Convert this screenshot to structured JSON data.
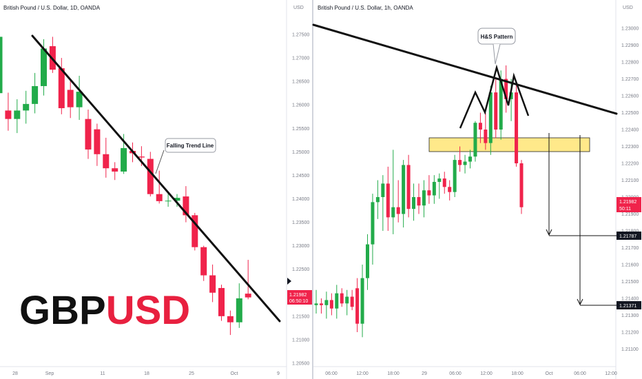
{
  "colors": {
    "up": "#22ab4a",
    "down": "#f0234b",
    "axis_text": "#787b86",
    "zone_fill": "#ffe98a",
    "zone_border": "#222222",
    "badge_black": "#131722",
    "ticker_base": "#111111",
    "ticker_quote": "#e8203f"
  },
  "left": {
    "title": "British Pound / U.S. Dollar, 1D, OANDA",
    "currency": "USD",
    "y_ticks": [
      "1.27500",
      "1.27000",
      "1.26500",
      "1.26000",
      "1.25500",
      "1.25000",
      "1.24500",
      "1.24000",
      "1.23500",
      "1.23000",
      "1.22500",
      "1.22000",
      "1.21500",
      "1.21000",
      "1.20500"
    ],
    "x_ticks": [
      "28",
      "Sep",
      "11",
      "18",
      "25",
      "Oct",
      "9"
    ],
    "price_badge": "1.21982",
    "countdown": "06:50:10",
    "annotation": "Falling Trend Line",
    "ticker_base": "GBP",
    "ticker_quote": "USD"
  },
  "right": {
    "title": "British Pound / U.S. Dollar, 1h, OANDA",
    "currency": "USD",
    "y_ticks": [
      "1.23000",
      "1.22900",
      "1.22800",
      "1.22700",
      "1.22600",
      "1.22500",
      "1.22400",
      "1.22300",
      "1.22200",
      "1.22100",
      "1.22000",
      "1.21900",
      "1.21800",
      "1.21700",
      "1.21600",
      "1.21500",
      "1.21400",
      "1.21300",
      "1.21200",
      "1.21100"
    ],
    "x_ticks": [
      "06:00",
      "12:00",
      "18:00",
      "29",
      "06:00",
      "12:00",
      "18:00",
      "Oct",
      "06:00",
      "12:00"
    ],
    "price_badge": "1.21982",
    "countdown": "50:11",
    "target1": "1.21787",
    "target2": "1.21371",
    "annotation": "H&S Pattern"
  },
  "chart_data": [
    {
      "type": "candlestick",
      "title": "British Pound / U.S. Dollar, 1D, OANDA",
      "y_axis_unit": "USD",
      "ylim": [
        1.203,
        1.2795
      ],
      "series": [
        {
          "o": 1.2625,
          "h": 1.276,
          "l": 1.2555,
          "c": 1.2745
        },
        {
          "o": 1.2588,
          "h": 1.2626,
          "l": 1.2545,
          "c": 1.257
        },
        {
          "o": 1.257,
          "h": 1.2612,
          "l": 1.254,
          "c": 1.2588
        },
        {
          "o": 1.2588,
          "h": 1.263,
          "l": 1.256,
          "c": 1.2602
        },
        {
          "o": 1.2602,
          "h": 1.2668,
          "l": 1.2582,
          "c": 1.264
        },
        {
          "o": 1.264,
          "h": 1.274,
          "l": 1.262,
          "c": 1.272
        },
        {
          "o": 1.2725,
          "h": 1.2745,
          "l": 1.2668,
          "c": 1.2675
        },
        {
          "o": 1.2678,
          "h": 1.27,
          "l": 1.258,
          "c": 1.2593
        },
        {
          "o": 1.2632,
          "h": 1.2652,
          "l": 1.2572,
          "c": 1.2595
        },
        {
          "o": 1.2595,
          "h": 1.2662,
          "l": 1.2568,
          "c": 1.2628
        },
        {
          "o": 1.257,
          "h": 1.259,
          "l": 1.2485,
          "c": 1.2505
        },
        {
          "o": 1.2548,
          "h": 1.256,
          "l": 1.247,
          "c": 1.2495
        },
        {
          "o": 1.2495,
          "h": 1.253,
          "l": 1.2445,
          "c": 1.2465
        },
        {
          "o": 1.2465,
          "h": 1.2478,
          "l": 1.244,
          "c": 1.2458
        },
        {
          "o": 1.2458,
          "h": 1.2538,
          "l": 1.2453,
          "c": 1.2508
        },
        {
          "o": 1.2502,
          "h": 1.252,
          "l": 1.2478,
          "c": 1.2497
        },
        {
          "o": 1.249,
          "h": 1.2512,
          "l": 1.247,
          "c": 1.2488
        },
        {
          "o": 1.2485,
          "h": 1.25,
          "l": 1.2405,
          "c": 1.241
        },
        {
          "o": 1.241,
          "h": 1.246,
          "l": 1.239,
          "c": 1.2395
        },
        {
          "o": 1.2395,
          "h": 1.2413,
          "l": 1.2383,
          "c": 1.2396
        },
        {
          "o": 1.2396,
          "h": 1.241,
          "l": 1.2383,
          "c": 1.2402
        },
        {
          "o": 1.2405,
          "h": 1.2427,
          "l": 1.235,
          "c": 1.2365
        },
        {
          "o": 1.2365,
          "h": 1.237,
          "l": 1.229,
          "c": 1.2297
        },
        {
          "o": 1.2297,
          "h": 1.23,
          "l": 1.2225,
          "c": 1.2237
        },
        {
          "o": 1.2237,
          "h": 1.226,
          "l": 1.218,
          "c": 1.22
        },
        {
          "o": 1.221,
          "h": 1.2217,
          "l": 1.214,
          "c": 1.215
        },
        {
          "o": 1.215,
          "h": 1.2162,
          "l": 1.211,
          "c": 1.2137
        },
        {
          "o": 1.2137,
          "h": 1.222,
          "l": 1.2125,
          "c": 1.2188
        },
        {
          "o": 1.2198,
          "h": 1.227,
          "l": 1.2186,
          "c": 1.219
        }
      ]
    },
    {
      "type": "candlestick",
      "title": "British Pound / U.S. Dollar, 1h, OANDA",
      "y_axis_unit": "USD",
      "ylim": [
        1.2105,
        1.2315
      ],
      "series": [
        {
          "o": 1.2136,
          "h": 1.2145,
          "l": 1.2131,
          "c": 1.2137
        },
        {
          "o": 1.2137,
          "h": 1.214,
          "l": 1.2131,
          "c": 1.2136
        },
        {
          "o": 1.2136,
          "h": 1.2144,
          "l": 1.2128,
          "c": 1.2139
        },
        {
          "o": 1.2139,
          "h": 1.2143,
          "l": 1.213,
          "c": 1.2134
        },
        {
          "o": 1.2134,
          "h": 1.2148,
          "l": 1.2128,
          "c": 1.2143
        },
        {
          "o": 1.2143,
          "h": 1.2146,
          "l": 1.2135,
          "c": 1.2137
        },
        {
          "o": 1.2137,
          "h": 1.2145,
          "l": 1.213,
          "c": 1.2141
        },
        {
          "o": 1.2141,
          "h": 1.2145,
          "l": 1.2133,
          "c": 1.2135
        },
        {
          "o": 1.2146,
          "h": 1.2152,
          "l": 1.212,
          "c": 1.2125
        },
        {
          "o": 1.2125,
          "h": 1.216,
          "l": 1.2117,
          "c": 1.2152
        },
        {
          "o": 1.2152,
          "h": 1.2178,
          "l": 1.2145,
          "c": 1.2172
        },
        {
          "o": 1.2172,
          "h": 1.2202,
          "l": 1.216,
          "c": 1.2197
        },
        {
          "o": 1.2197,
          "h": 1.221,
          "l": 1.2187,
          "c": 1.22
        },
        {
          "o": 1.22,
          "h": 1.2213,
          "l": 1.218,
          "c": 1.2208
        },
        {
          "o": 1.2208,
          "h": 1.2218,
          "l": 1.218,
          "c": 1.2188
        },
        {
          "o": 1.2188,
          "h": 1.2228,
          "l": 1.2178,
          "c": 1.2194
        },
        {
          "o": 1.2194,
          "h": 1.221,
          "l": 1.2185,
          "c": 1.219
        },
        {
          "o": 1.219,
          "h": 1.2222,
          "l": 1.2182,
          "c": 1.2219
        },
        {
          "o": 1.2219,
          "h": 1.2225,
          "l": 1.2188,
          "c": 1.2193
        },
        {
          "o": 1.2193,
          "h": 1.2208,
          "l": 1.2186,
          "c": 1.22
        },
        {
          "o": 1.22,
          "h": 1.2208,
          "l": 1.219,
          "c": 1.2195
        },
        {
          "o": 1.2195,
          "h": 1.221,
          "l": 1.2188,
          "c": 1.2204
        },
        {
          "o": 1.2204,
          "h": 1.2213,
          "l": 1.2196,
          "c": 1.2201
        },
        {
          "o": 1.2201,
          "h": 1.2213,
          "l": 1.2196,
          "c": 1.2209
        },
        {
          "o": 1.2209,
          "h": 1.2214,
          "l": 1.2199,
          "c": 1.2211
        },
        {
          "o": 1.2211,
          "h": 1.2215,
          "l": 1.2202,
          "c": 1.2206
        },
        {
          "o": 1.2206,
          "h": 1.221,
          "l": 1.2198,
          "c": 1.2203
        },
        {
          "o": 1.2203,
          "h": 1.2225,
          "l": 1.22,
          "c": 1.2222
        },
        {
          "o": 1.2222,
          "h": 1.223,
          "l": 1.2215,
          "c": 1.2219
        },
        {
          "o": 1.2219,
          "h": 1.2225,
          "l": 1.2214,
          "c": 1.2221
        },
        {
          "o": 1.2221,
          "h": 1.2228,
          "l": 1.2217,
          "c": 1.2224
        },
        {
          "o": 1.2224,
          "h": 1.2245,
          "l": 1.2221,
          "c": 1.2244
        },
        {
          "o": 1.2244,
          "h": 1.225,
          "l": 1.2232,
          "c": 1.224
        },
        {
          "o": 1.224,
          "h": 1.225,
          "l": 1.2228,
          "c": 1.2232
        },
        {
          "o": 1.2232,
          "h": 1.2266,
          "l": 1.2225,
          "c": 1.2262
        },
        {
          "o": 1.2262,
          "h": 1.227,
          "l": 1.2235,
          "c": 1.224
        },
        {
          "o": 1.224,
          "h": 1.2275,
          "l": 1.2234,
          "c": 1.227
        },
        {
          "o": 1.227,
          "h": 1.2278,
          "l": 1.225,
          "c": 1.2258
        },
        {
          "o": 1.2258,
          "h": 1.227,
          "l": 1.2245,
          "c": 1.2262
        },
        {
          "o": 1.2262,
          "h": 1.2268,
          "l": 1.2218,
          "c": 1.222
        },
        {
          "o": 1.222,
          "h": 1.2222,
          "l": 1.219,
          "c": 1.2194
        }
      ],
      "trendline": {
        "from": 1.2295,
        "to": 1.2252
      },
      "head_and_shoulders": "neckline at resistance zone",
      "resistance_zone": [
        1.22287,
        1.2234
      ],
      "targets": [
        1.21787,
        1.21371
      ]
    }
  ]
}
